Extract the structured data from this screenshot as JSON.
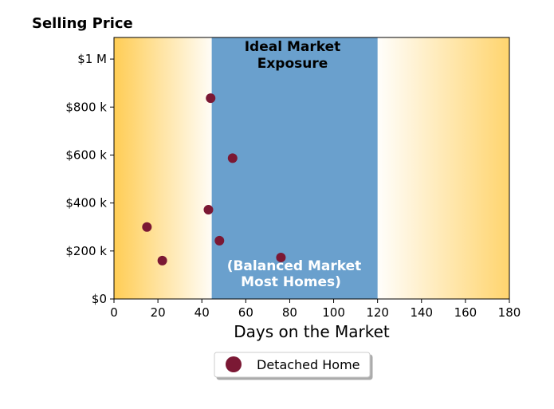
{
  "chart_data": {
    "type": "scatter",
    "title": "Selling Price",
    "xlabel": "Days on the Market",
    "ylabel": "",
    "xlim": [
      0,
      180
    ],
    "ylim": [
      0,
      1090000
    ],
    "x_ticks": [
      0,
      20,
      40,
      60,
      80,
      100,
      120,
      140,
      160,
      180
    ],
    "x_tick_labels": [
      "0",
      "20",
      "40",
      "60",
      "80",
      "100",
      "120",
      "140",
      "160",
      "180"
    ],
    "y_ticks": [
      0,
      200000,
      400000,
      600000,
      800000,
      1000000
    ],
    "y_tick_labels": [
      "$0",
      "$200 k",
      "$400 k",
      "$600 k",
      "$800 k",
      "$1 M"
    ],
    "grid": false,
    "legend_position": "bottom-center",
    "band": {
      "x_start": 44.5,
      "x_end": 120,
      "color": "#6aa0cd",
      "top_label": [
        "Ideal Market",
        "Exposure"
      ],
      "bottom_label": [
        "(Balanced Market",
        "Most Homes)"
      ]
    },
    "background_gradient_color": "#ffcd55",
    "series": [
      {
        "name": "Detached Home",
        "color": "#7b1834",
        "points": [
          {
            "x": 15,
            "y": 300000
          },
          {
            "x": 22,
            "y": 160000
          },
          {
            "x": 43,
            "y": 372000
          },
          {
            "x": 44,
            "y": 837000
          },
          {
            "x": 48,
            "y": 243000
          },
          {
            "x": 54,
            "y": 587000
          },
          {
            "x": 76,
            "y": 173000
          }
        ]
      }
    ]
  }
}
